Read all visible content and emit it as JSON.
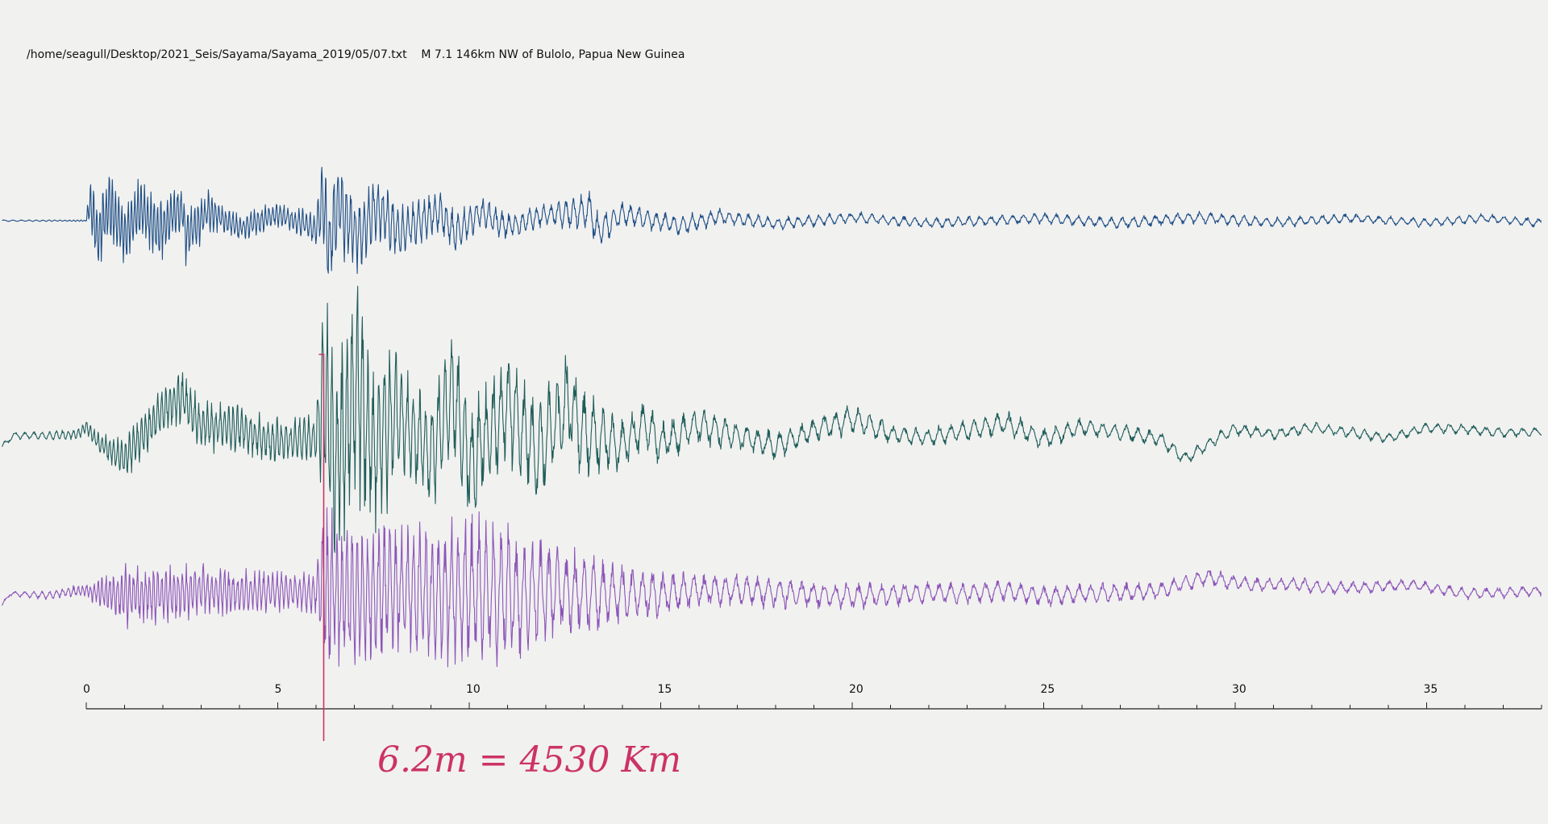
{
  "header": {
    "path": "/home/seagull/Desktop/2021_Seis/Sayama/Sayama_2019/05/07.txt",
    "event": "M 7.1 146km NW of Bulolo, Papua New Guinea"
  },
  "annotation": {
    "text": "6.2m = 4530 Km",
    "color": "#cc3366"
  },
  "chart_data": {
    "type": "line",
    "title": "",
    "xlabel": "",
    "ylabel": "",
    "xlim": [
      -2.2,
      38
    ],
    "x_ticks": [
      0,
      5,
      10,
      15,
      20,
      25,
      30,
      35
    ],
    "minor_tick_step": 1,
    "grid": false,
    "marker_x": 6.2,
    "series": [
      {
        "color": "#1f4f86",
        "points": [
          [
            -2.2,
            0
          ],
          [
            0,
            0
          ],
          [
            0.1,
            46
          ],
          [
            0.3,
            -44
          ],
          [
            0.6,
            38
          ],
          [
            1,
            -36
          ],
          [
            1.4,
            30
          ],
          [
            1.9,
            -28
          ],
          [
            2.5,
            36
          ],
          [
            2.6,
            -40
          ],
          [
            3.2,
            22
          ],
          [
            4,
            -18
          ],
          [
            5,
            16
          ],
          [
            6,
            -20
          ],
          [
            6.2,
            62
          ],
          [
            6.3,
            -70
          ],
          [
            6.6,
            44
          ],
          [
            7.1,
            -38
          ],
          [
            7.6,
            34
          ],
          [
            8.2,
            -30
          ],
          [
            9.2,
            22
          ],
          [
            9.6,
            -30
          ],
          [
            10.3,
            20
          ],
          [
            11,
            -16
          ],
          [
            12,
            14
          ],
          [
            13.2,
            24
          ],
          [
            13.3,
            -28
          ],
          [
            14,
            16
          ],
          [
            15.5,
            -12
          ],
          [
            16.5,
            10
          ],
          [
            18,
            -8
          ],
          [
            20,
            8
          ],
          [
            22,
            -6
          ],
          [
            25,
            6
          ],
          [
            27,
            -6
          ],
          [
            29,
            8
          ],
          [
            31,
            -5
          ],
          [
            33,
            6
          ],
          [
            35,
            -5
          ],
          [
            36.5,
            6
          ],
          [
            38,
            -6
          ]
        ],
        "envelope": [
          [
            -2.2,
            1
          ],
          [
            0,
            1
          ],
          [
            0.1,
            46
          ],
          [
            1.5,
            36
          ],
          [
            2.5,
            40
          ],
          [
            3.5,
            20
          ],
          [
            5,
            16
          ],
          [
            6,
            20
          ],
          [
            6.2,
            66
          ],
          [
            7,
            52
          ],
          [
            8.5,
            30
          ],
          [
            9.5,
            30
          ],
          [
            10.5,
            20
          ],
          [
            12,
            14
          ],
          [
            13.2,
            26
          ],
          [
            14,
            16
          ],
          [
            16,
            12
          ],
          [
            18,
            8
          ],
          [
            22,
            7
          ],
          [
            29,
            8
          ],
          [
            33,
            6
          ],
          [
            38,
            6
          ]
        ],
        "period": [
          [
            -2.2,
            0.25
          ],
          [
            0,
            0.08
          ],
          [
            6,
            0.1
          ],
          [
            10,
            0.16
          ],
          [
            14,
            0.22
          ],
          [
            20,
            0.28
          ],
          [
            38,
            0.3
          ]
        ]
      },
      {
        "color": "#1f5e5a",
        "points": [
          [
            -2.2,
            -40
          ],
          [
            -1.9,
            -10
          ],
          [
            -1,
            -12
          ],
          [
            -0.2,
            -8
          ],
          [
            0,
            12
          ],
          [
            0.3,
            -30
          ],
          [
            1,
            -68
          ],
          [
            2,
            52
          ],
          [
            2.5,
            82
          ],
          [
            3,
            12
          ],
          [
            4,
            6
          ],
          [
            5,
            -30
          ],
          [
            6,
            -20
          ],
          [
            6.2,
            120
          ],
          [
            6.5,
            -84
          ],
          [
            7.1,
            120
          ],
          [
            7.5,
            -60
          ],
          [
            8,
            50
          ],
          [
            9,
            -60
          ],
          [
            9.6,
            96
          ],
          [
            10,
            -84
          ],
          [
            11,
            64
          ],
          [
            11.8,
            -60
          ],
          [
            12.6,
            70
          ],
          [
            13,
            -10
          ],
          [
            14,
            -36
          ],
          [
            14.6,
            18
          ],
          [
            15,
            -30
          ],
          [
            16,
            12
          ],
          [
            17,
            -12
          ],
          [
            18,
            -36
          ],
          [
            19,
            2
          ],
          [
            20,
            30
          ],
          [
            21,
            -8
          ],
          [
            22,
            -16
          ],
          [
            23,
            0
          ],
          [
            24,
            20
          ],
          [
            25,
            -20
          ],
          [
            26,
            10
          ],
          [
            27,
            -4
          ],
          [
            28,
            -18
          ],
          [
            28.7,
            -70
          ],
          [
            29.5,
            -20
          ],
          [
            30,
            4
          ],
          [
            31,
            -8
          ],
          [
            32,
            8
          ],
          [
            33,
            -4
          ],
          [
            34,
            -18
          ],
          [
            35,
            8
          ],
          [
            36,
            4
          ],
          [
            37,
            -4
          ],
          [
            38,
            -2
          ]
        ],
        "envelope": [
          [
            -2.2,
            4
          ],
          [
            0,
            8
          ],
          [
            1,
            28
          ],
          [
            2.5,
            34
          ],
          [
            4,
            30
          ],
          [
            6,
            32
          ],
          [
            6.2,
            150
          ],
          [
            7.1,
            140
          ],
          [
            8.5,
            70
          ],
          [
            9.6,
            90
          ],
          [
            11,
            70
          ],
          [
            12.6,
            70
          ],
          [
            14,
            34
          ],
          [
            16,
            24
          ],
          [
            18,
            18
          ],
          [
            20,
            18
          ],
          [
            22,
            12
          ],
          [
            24,
            16
          ],
          [
            26,
            12
          ],
          [
            28,
            10
          ],
          [
            30,
            8
          ],
          [
            34,
            7
          ],
          [
            38,
            6
          ]
        ],
        "period": [
          [
            -2.2,
            0.3
          ],
          [
            0,
            0.1
          ],
          [
            6,
            0.12
          ],
          [
            10,
            0.18
          ],
          [
            14,
            0.26
          ],
          [
            20,
            0.3
          ],
          [
            38,
            0.32
          ]
        ]
      },
      {
        "color": "#8c55b8",
        "points": [
          [
            -2.2,
            -35
          ],
          [
            -2,
            -4
          ],
          [
            -1,
            -8
          ],
          [
            -0.5,
            0
          ],
          [
            0,
            4
          ],
          [
            1,
            -10
          ],
          [
            2,
            -6
          ],
          [
            3,
            6
          ],
          [
            4,
            -4
          ],
          [
            5,
            4
          ],
          [
            6,
            -4
          ],
          [
            6.2,
            10
          ],
          [
            7,
            -20
          ],
          [
            8,
            10
          ],
          [
            9,
            -6
          ],
          [
            10,
            0
          ],
          [
            11,
            -10
          ],
          [
            12,
            10
          ],
          [
            13,
            -4
          ],
          [
            14,
            -2
          ],
          [
            15,
            -6
          ],
          [
            16,
            4
          ],
          [
            17,
            4
          ],
          [
            18,
            -2
          ],
          [
            19,
            -6
          ],
          [
            20,
            -10
          ],
          [
            21,
            -6
          ],
          [
            22,
            -2
          ],
          [
            23,
            -4
          ],
          [
            24,
            4
          ],
          [
            25,
            -12
          ],
          [
            26,
            -4
          ],
          [
            27,
            -2
          ],
          [
            28,
            2
          ],
          [
            29.3,
            38
          ],
          [
            29.6,
            30
          ],
          [
            30.5,
            18
          ],
          [
            31.5,
            20
          ],
          [
            32.5,
            8
          ],
          [
            33.5,
            12
          ],
          [
            34.5,
            18
          ],
          [
            35,
            12
          ],
          [
            36,
            -4
          ],
          [
            37,
            -2
          ],
          [
            38,
            4
          ]
        ],
        "envelope": [
          [
            -2.2,
            3
          ],
          [
            0,
            8
          ],
          [
            1,
            40
          ],
          [
            2.5,
            38
          ],
          [
            4,
            30
          ],
          [
            6,
            26
          ],
          [
            6.2,
            110
          ],
          [
            7,
            96
          ],
          [
            8.5,
            88
          ],
          [
            10,
            100
          ],
          [
            11,
            90
          ],
          [
            12,
            70
          ],
          [
            14,
            40
          ],
          [
            16,
            24
          ],
          [
            18,
            20
          ],
          [
            20,
            18
          ],
          [
            22,
            14
          ],
          [
            25,
            14
          ],
          [
            28,
            12
          ],
          [
            30,
            10
          ],
          [
            34,
            8
          ],
          [
            38,
            7
          ]
        ],
        "period": [
          [
            -2.2,
            0.3
          ],
          [
            0,
            0.1
          ],
          [
            6,
            0.12
          ],
          [
            10,
            0.18
          ],
          [
            14,
            0.26
          ],
          [
            20,
            0.3
          ],
          [
            38,
            0.32
          ]
        ]
      }
    ]
  }
}
